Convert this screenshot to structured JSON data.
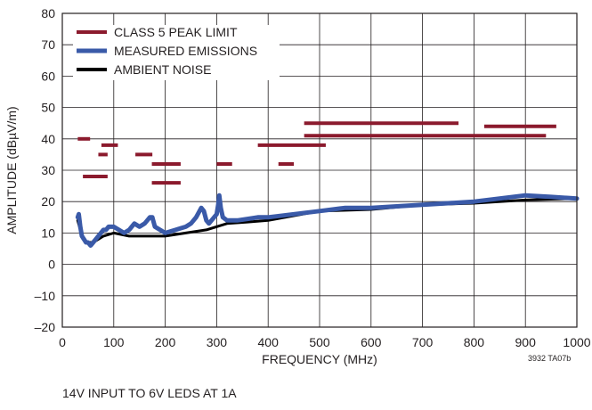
{
  "chart_data": {
    "type": "line",
    "xlabel": "FREQUENCY (MHz)",
    "ylabel": "AMPLITUDE (dBµV/m)",
    "xlim": [
      0,
      1000
    ],
    "ylim": [
      -20,
      80
    ],
    "x_ticks": [
      0,
      100,
      200,
      300,
      400,
      500,
      600,
      700,
      800,
      900,
      1000
    ],
    "x_tick_labels": [
      "0",
      "100",
      "200",
      "300",
      "400",
      "500",
      "600",
      "700",
      "800",
      "900",
      "1000"
    ],
    "y_ticks": [
      -20,
      -10,
      0,
      10,
      20,
      30,
      40,
      50,
      60,
      70,
      80
    ],
    "y_tick_labels": [
      "–20",
      "–10",
      "0",
      "10",
      "20",
      "30",
      "40",
      "50",
      "60",
      "70",
      "80"
    ],
    "grid": true,
    "legend_position": "top-left",
    "series": [
      {
        "name": "CLASS 5 PEAK LIMIT",
        "color": "#8b1a2d",
        "kind": "segments",
        "segments": [
          {
            "x": [
              30,
              54
            ],
            "y": 40
          },
          {
            "x": [
              40,
              88
            ],
            "y": 28
          },
          {
            "x": [
              70,
              88
            ],
            "y": 35
          },
          {
            "x": [
              76,
              108
            ],
            "y": 38
          },
          {
            "x": [
              142,
              175
            ],
            "y": 35
          },
          {
            "x": [
              174,
              230
            ],
            "y": 26
          },
          {
            "x": [
              174,
              230
            ],
            "y": 32
          },
          {
            "x": [
              300,
              330
            ],
            "y": 32
          },
          {
            "x": [
              380,
              512
            ],
            "y": 38
          },
          {
            "x": [
              420,
              450
            ],
            "y": 32
          },
          {
            "x": [
              470,
              770
            ],
            "y": 45
          },
          {
            "x": [
              470,
              940
            ],
            "y": 41
          },
          {
            "x": [
              820,
              960
            ],
            "y": 44
          }
        ]
      },
      {
        "name": "MEASURED EMISSIONS",
        "color": "#3a5aa8",
        "kind": "line",
        "x": [
          30,
          32,
          35,
          38,
          42,
          46,
          50,
          55,
          60,
          65,
          70,
          75,
          80,
          85,
          90,
          95,
          100,
          110,
          120,
          130,
          140,
          150,
          160,
          165,
          170,
          175,
          180,
          190,
          200,
          210,
          220,
          230,
          240,
          250,
          260,
          270,
          275,
          280,
          285,
          290,
          295,
          300,
          303,
          305,
          308,
          312,
          320,
          340,
          360,
          380,
          400,
          450,
          500,
          550,
          600,
          650,
          700,
          750,
          800,
          850,
          900,
          950,
          1000
        ],
        "y": [
          15,
          16,
          12,
          9,
          8,
          7,
          7,
          6,
          7,
          8,
          9,
          10,
          11,
          11,
          12,
          12,
          12,
          11,
          10,
          11,
          13,
          12,
          13,
          14,
          15,
          15,
          12,
          11,
          10,
          10.5,
          11,
          11.5,
          12,
          13,
          15,
          18,
          17,
          14,
          13,
          14,
          15,
          16,
          19,
          22,
          18,
          15,
          14,
          14,
          14.5,
          15,
          15,
          16,
          17,
          18,
          18,
          18.5,
          19,
          19.5,
          20,
          21,
          22,
          21.5,
          21
        ]
      },
      {
        "name": "AMBIENT NOISE",
        "color": "#000000",
        "kind": "line",
        "x": [
          30,
          35,
          40,
          50,
          60,
          80,
          100,
          130,
          160,
          200,
          240,
          280,
          320,
          360,
          400,
          450,
          500,
          600,
          700,
          800,
          900,
          1000
        ],
        "y": [
          14,
          11,
          8,
          7,
          7,
          9,
          10,
          9,
          9,
          9,
          10,
          11,
          13,
          13.5,
          14,
          15.5,
          17,
          17.5,
          19,
          19.5,
          20.5,
          21
        ]
      }
    ]
  },
  "annotations": {
    "part_code": "3932 TA07b",
    "caption": "14V INPUT TO 6V LEDS AT 1A"
  }
}
